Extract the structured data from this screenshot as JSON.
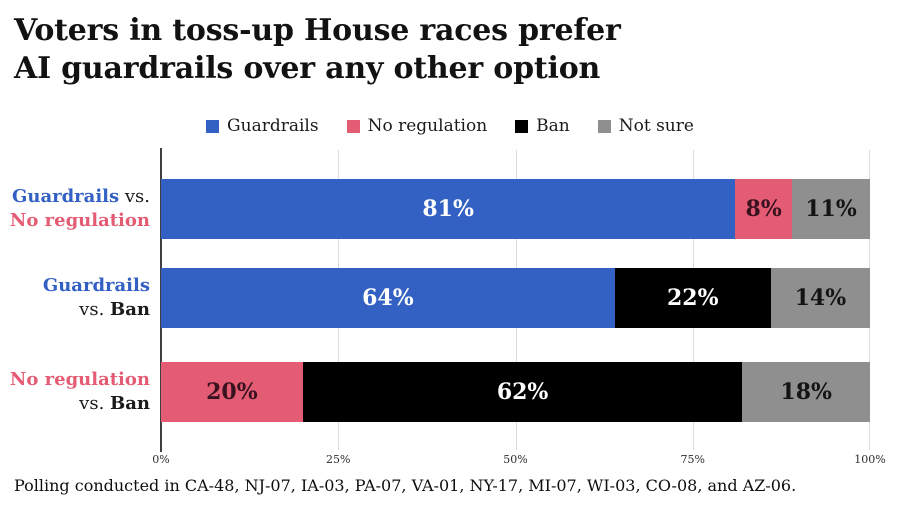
{
  "title": {
    "line1": "Voters in toss-up House races prefer",
    "line2": "AI guardrails over any other option"
  },
  "legend": {
    "items": [
      {
        "label": "Guardrails",
        "color": "#3361c3"
      },
      {
        "label": "No regulation",
        "color": "#e45c74"
      },
      {
        "label": "Ban",
        "color": "#000000"
      },
      {
        "label": "Not sure",
        "color": "#8f8f8f"
      }
    ]
  },
  "chart_data": {
    "type": "bar",
    "orientation": "horizontal",
    "stacked": true,
    "unit": "percent",
    "xlim": [
      0,
      100
    ],
    "x_ticks": [
      "0%",
      "25%",
      "50%",
      "75%",
      "100%"
    ],
    "grid": "vertical",
    "legend_position": "top",
    "categories": [
      "Guardrails vs. No regulation",
      "Guardrails vs. Ban",
      "No regulation vs. Ban"
    ],
    "series": [
      {
        "name": "Guardrails",
        "color": "#3361c3",
        "values": [
          81,
          64,
          null
        ]
      },
      {
        "name": "No regulation",
        "color": "#e45c74",
        "values": [
          8,
          null,
          20
        ]
      },
      {
        "name": "Ban",
        "color": "#000000",
        "values": [
          null,
          22,
          62
        ]
      },
      {
        "name": "Not sure",
        "color": "#8f8f8f",
        "values": [
          11,
          14,
          18
        ]
      }
    ],
    "rows": [
      {
        "label": {
          "line1": [
            {
              "text": "Guardrails",
              "style": "blue"
            },
            {
              "text": " vs.",
              "style": "plain"
            }
          ],
          "line2": [
            {
              "text": "No regulation",
              "style": "pink"
            }
          ]
        },
        "segments": [
          {
            "name": "Guardrails",
            "value": 81,
            "label": "81%",
            "color": "#3361c3",
            "label_color": "#ffffff"
          },
          {
            "name": "No regulation",
            "value": 8,
            "label": "8%",
            "color": "#e45c74",
            "label_color": "#38121f"
          },
          {
            "name": "Not sure",
            "value": 11,
            "label": "11%",
            "color": "#8f8f8f",
            "label_color": "#141414"
          }
        ]
      },
      {
        "label": {
          "line1": [
            {
              "text": "Guardrails",
              "style": "blue"
            }
          ],
          "line2": [
            {
              "text": "vs. ",
              "style": "plain"
            },
            {
              "text": "Ban",
              "style": "bold"
            }
          ]
        },
        "segments": [
          {
            "name": "Guardrails",
            "value": 64,
            "label": "64%",
            "color": "#3361c3",
            "label_color": "#ffffff"
          },
          {
            "name": "Ban",
            "value": 22,
            "label": "22%",
            "color": "#000000",
            "label_color": "#ffffff"
          },
          {
            "name": "Not sure",
            "value": 14,
            "label": "14%",
            "color": "#8f8f8f",
            "label_color": "#141414"
          }
        ]
      },
      {
        "label": {
          "line1": [
            {
              "text": "No regulation",
              "style": "pink"
            }
          ],
          "line2": [
            {
              "text": "vs. ",
              "style": "plain"
            },
            {
              "text": "Ban",
              "style": "bold"
            }
          ]
        },
        "segments": [
          {
            "name": "No regulation",
            "value": 20,
            "label": "20%",
            "color": "#e45c74",
            "label_color": "#38121f"
          },
          {
            "name": "Ban",
            "value": 62,
            "label": "62%",
            "color": "#000000",
            "label_color": "#ffffff"
          },
          {
            "name": "Not sure",
            "value": 18,
            "label": "18%",
            "color": "#8f8f8f",
            "label_color": "#141414"
          }
        ]
      }
    ]
  },
  "footer": {
    "note": "Polling conducted in CA-48, NJ-07, IA-03, PA-07, VA-01, NY-17, MI-07, WI-03, CO-08, and AZ-06."
  },
  "colors": {
    "guardrails_blue": "#3361c3",
    "no_regulation_pink": "#e45c74",
    "ban_black": "#000000",
    "not_sure_gray": "#8f8f8f",
    "grid_line": "#dcdcdc",
    "axis_line": "#3f3f3f"
  }
}
